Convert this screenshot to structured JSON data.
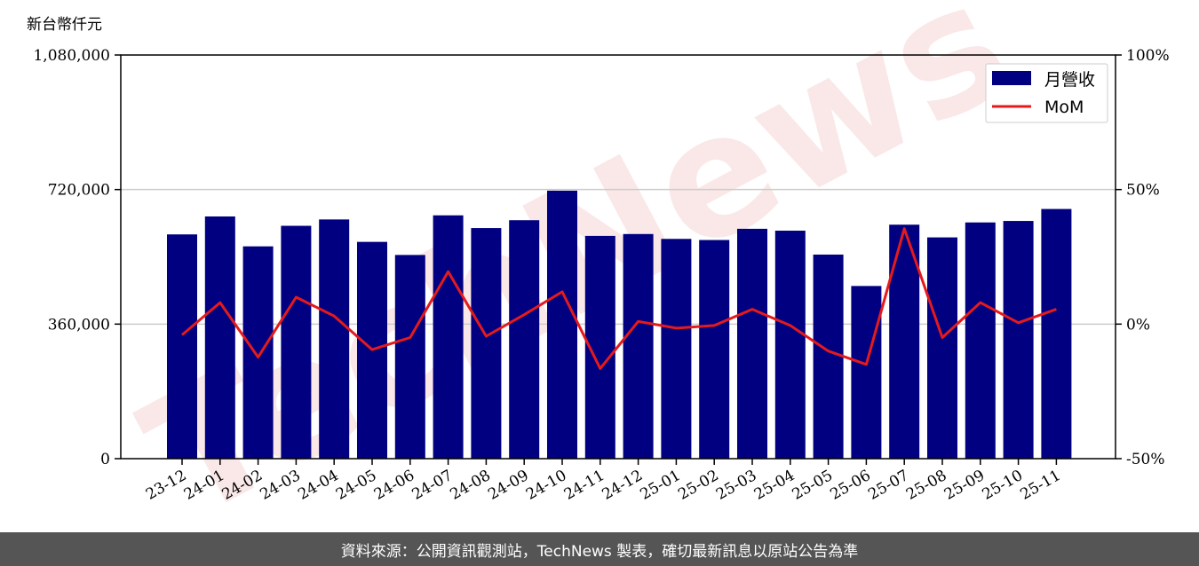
{
  "chart_data": {
    "type": "bar",
    "unit_label": "新台幣仟元",
    "categories": [
      "23-12",
      "24-01",
      "24-02",
      "24-03",
      "24-04",
      "24-05",
      "24-06",
      "24-07",
      "24-08",
      "24-09",
      "24-10",
      "24-11",
      "24-12",
      "25-01",
      "25-02",
      "25-03",
      "25-04",
      "25-05",
      "25-06",
      "25-07",
      "25-08",
      "25-09",
      "25-10",
      "25-11"
    ],
    "series": [
      {
        "name": "月營收",
        "type": "bar",
        "axis": "left",
        "color": "#000080",
        "values": [
          600000,
          648000,
          568000,
          623000,
          640000,
          580000,
          545000,
          651000,
          617000,
          638000,
          717000,
          596000,
          601000,
          588000,
          585000,
          615000,
          610000,
          546000,
          462000,
          626000,
          592000,
          632000,
          636000,
          668000
        ]
      },
      {
        "name": "MoM",
        "type": "line",
        "axis": "right",
        "unit": "%",
        "color": "#e41a1c",
        "values": [
          -4,
          8,
          -12.3,
          10,
          3,
          -9.5,
          -5,
          19.5,
          -4.5,
          3.5,
          12,
          -16.5,
          1,
          -1.5,
          -0.5,
          5.5,
          -0.5,
          -10,
          -15,
          35.5,
          -5,
          8,
          0.5,
          5.5
        ]
      }
    ],
    "y_left": {
      "min": 0,
      "max": 1080000,
      "ticks": [
        "0",
        "360,000",
        "720,000",
        "1,080,000"
      ],
      "tick_values": [
        0,
        360000,
        720000,
        1080000
      ]
    },
    "y_right": {
      "min": -50,
      "max": 100,
      "ticks": [
        "-50%",
        "0%",
        "50%",
        "100%"
      ],
      "tick_values": [
        -50,
        0,
        50,
        100
      ]
    },
    "grid": "horizontal",
    "legend_placement": "top-right"
  },
  "watermark_text": "TechNews",
  "footer_text": "資料來源：公開資訊觀測站，TechNews 製表，確切最新訊息以原站公告為準"
}
